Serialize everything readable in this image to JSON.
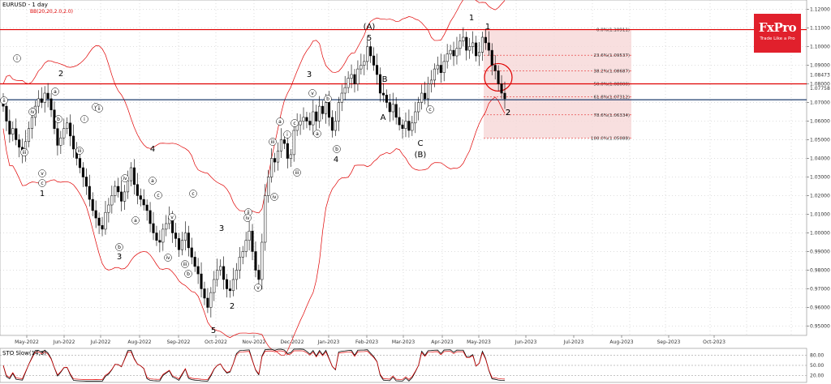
{
  "header": {
    "symbol_label": "EURUSD - 1 day",
    "indicator_label": "BB(20,20,2.0,2.0)"
  },
  "logo": {
    "brand": "FxPro",
    "tagline": "Trade Like a Pro",
    "color": "#e1202c"
  },
  "colors": {
    "resistance": "#e00000",
    "support": "#1f3d6e",
    "band": "#e00000",
    "fib_zone": "#f6d7d7",
    "bull": "#1a8a1a",
    "bear": "#d00000"
  },
  "chart_data": {
    "type": "candlestick",
    "ylim": [
      0.945,
      1.125
    ],
    "price_ticks": [
      "1.12000",
      "1.11000",
      "1.10000",
      "1.09000",
      "1.08000",
      "1.07000",
      "1.06000",
      "1.05000",
      "1.04000",
      "1.03000",
      "1.02000",
      "1.01000",
      "1.00000",
      "0.99000",
      "0.98000",
      "0.97000",
      "0.96000",
      "0.95000"
    ],
    "x_ticks": [
      "May-2022",
      "Jun-2022",
      "Jul-2022",
      "Aug-2022",
      "Sep-2022",
      "Oct-2022",
      "Nov-2022",
      "Dec-2022",
      "Jan-2023",
      "Feb-2023",
      "Mar-2023",
      "Apr-2023",
      "May-2023",
      "Jun-2023",
      "Jul-2023",
      "Aug-2023",
      "Sep-2023",
      "Oct-2023"
    ],
    "current_price": "1.08473",
    "support_price": "1.07758",
    "horizontal_lines": [
      {
        "price": 1.1091,
        "role": "resistance"
      },
      {
        "price": 1.08,
        "role": "resistance"
      },
      {
        "price": 1.07148,
        "role": "support"
      }
    ],
    "fibonacci": [
      {
        "label": "0.0%(1.10911)",
        "price": 1.10911
      },
      {
        "label": "23.6%(1.09537)",
        "price": 1.09537
      },
      {
        "label": "38.2%(1.08687)",
        "price": 1.08687
      },
      {
        "label": "50.0%(1.08000)",
        "price": 1.08
      },
      {
        "label": "61.8%(1.07312)",
        "price": 1.07312
      },
      {
        "label": "78.6%(1.06334)",
        "price": 1.06334
      },
      {
        "label": "100.0%(1.05088)",
        "price": 1.05088
      }
    ],
    "close": [
      1.068,
      1.06,
      1.053,
      1.056,
      1.05,
      1.046,
      1.042,
      1.049,
      1.056,
      1.062,
      1.068,
      1.072,
      1.07,
      1.075,
      1.072,
      1.066,
      1.056,
      1.047,
      1.051,
      1.056,
      1.059,
      1.052,
      1.045,
      1.04,
      1.035,
      1.03,
      1.025,
      1.018,
      1.012,
      1.008,
      1.004,
      1.002,
      1.011,
      1.015,
      1.02,
      1.025,
      1.022,
      1.017,
      1.022,
      1.028,
      1.035,
      1.026,
      1.02,
      1.018,
      1.015,
      1.012,
      1.005,
      1.0,
      0.996,
      0.995,
      1.002,
      1.005,
      1.008,
      1.0,
      0.997,
      0.991,
      0.996,
      1.0,
      0.992,
      0.987,
      0.982,
      0.978,
      0.97,
      0.965,
      0.96,
      0.968,
      0.975,
      0.98,
      0.982,
      0.975,
      0.97,
      0.969,
      0.975,
      0.98,
      0.987,
      0.99,
      0.996,
      1.001,
      0.99,
      0.98,
      0.975,
      0.995,
      1.02,
      1.03,
      1.04,
      1.038,
      1.044,
      1.05,
      1.048,
      1.04,
      1.042,
      1.055,
      1.058,
      1.06,
      1.062,
      1.06,
      1.058,
      1.065,
      1.06,
      1.068,
      1.064,
      1.07,
      1.062,
      1.055,
      1.06,
      1.07,
      1.075,
      1.078,
      1.083,
      1.085,
      1.08,
      1.088,
      1.09,
      1.092,
      1.1,
      1.095,
      1.09,
      1.085,
      1.075,
      1.074,
      1.07,
      1.065,
      1.069,
      1.062,
      1.058,
      1.056,
      1.06,
      1.055,
      1.059,
      1.065,
      1.07,
      1.075,
      1.072,
      1.08,
      1.082,
      1.088,
      1.09,
      1.086,
      1.092,
      1.096,
      1.098,
      1.095,
      1.099,
      1.103,
      1.105,
      1.098,
      1.1,
      1.102,
      1.095,
      1.097,
      1.105,
      1.102,
      1.098,
      1.09,
      1.087,
      1.08,
      1.075,
      1.072
    ]
  },
  "annotations": {
    "waves": [
      {
        "text": "(A)"
      },
      {
        "text": "5"
      },
      {
        "text": "1"
      },
      {
        "text": "2"
      },
      {
        "text": "3"
      },
      {
        "text": "4"
      },
      {
        "text": "B"
      },
      {
        "text": "A"
      },
      {
        "text": "C"
      },
      {
        "text": "(B)"
      },
      {
        "text": "1"
      },
      {
        "text": "2"
      },
      {
        "text": "3"
      },
      {
        "text": "4"
      },
      {
        "text": "5"
      },
      {
        "text": "2"
      },
      {
        "text": "3"
      },
      {
        "text": "1"
      },
      {
        "text": "2"
      }
    ],
    "small_labels": [
      "ii",
      "iv",
      "iii",
      "v",
      "i",
      "a",
      "b",
      "c",
      "i",
      "iii",
      "v",
      "ii",
      "iv",
      "a",
      "b",
      "c",
      "v",
      "iv",
      "iii",
      "a",
      "b",
      "c",
      "ii",
      "iv",
      "iii",
      "v",
      "a",
      "b",
      "c",
      "iii",
      "i",
      "v",
      "iv",
      "a",
      "b",
      "c"
    ]
  },
  "stochastic": {
    "label": "STO Slow(14,3)",
    "levels": [
      "80.00",
      "50.00",
      "20.00"
    ]
  }
}
